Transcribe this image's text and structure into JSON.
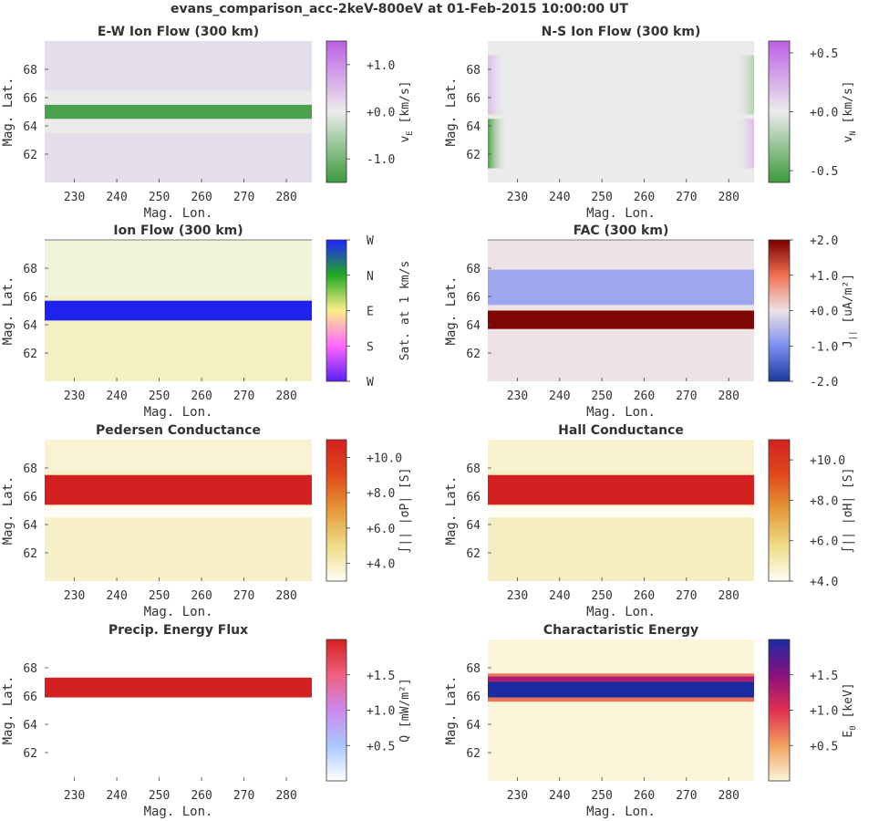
{
  "figure_title": "evans_comparison_acc-2keV-800eV at 01-Feb-2015 10:00:00 UT",
  "chart_data": [
    {
      "type": "heatmap",
      "title": "E-W Ion Flow (300 km)",
      "xlabel": "Mag. Lon.",
      "ylabel": "Mag. Lat.",
      "xlim": [
        223,
        286
      ],
      "ylim": [
        60,
        70
      ],
      "xticks": [
        "230",
        "240",
        "250",
        "260",
        "270",
        "280"
      ],
      "yticks": [
        "62",
        "64",
        "66",
        "68"
      ],
      "colorbar": {
        "label_main": "v",
        "label_sub": "E",
        "label_unit": " [km/s]",
        "ticks": [
          "+1.0",
          "+0.0",
          "-1.0"
        ],
        "range": [
          -1.5,
          1.5
        ],
        "colors": [
          "#3a9a3a",
          "#ebebeb",
          "#bd5fe6"
        ]
      },
      "bands": [
        {
          "from": 60,
          "to": 70,
          "value": 0.15
        },
        {
          "from": 63.5,
          "to": 64.5,
          "value": 0
        },
        {
          "from": 64.5,
          "to": 65.5,
          "value": -1.35
        },
        {
          "from": 65.5,
          "to": 66.5,
          "value": 0
        }
      ]
    },
    {
      "type": "heatmap",
      "title": "N-S Ion Flow (300 km)",
      "xlabel": "Mag. Lon.",
      "ylabel": "Mag. Lat.",
      "xlim": [
        223,
        286
      ],
      "ylim": [
        60,
        70
      ],
      "xticks": [
        "230",
        "240",
        "250",
        "260",
        "270",
        "280"
      ],
      "yticks": [
        "62",
        "64",
        "66",
        "68"
      ],
      "colorbar": {
        "label_main": "v",
        "label_sub": "N",
        "label_unit": " [km/s]",
        "ticks": [
          "+0.5",
          "+0.0",
          "-0.5"
        ],
        "range": [
          -0.6,
          0.6
        ],
        "colors": [
          "#3a9a3a",
          "#ebebeb",
          "#bd5fe6"
        ]
      },
      "bands": [
        {
          "from": 60,
          "to": 70,
          "value": 0
        }
      ],
      "edge_features": [
        {
          "lat": [
            61,
            64.5
          ],
          "left": -0.55,
          "right": 0.2
        },
        {
          "lat": [
            64.8,
            69
          ],
          "left": 0.2,
          "right": -0.2
        }
      ]
    },
    {
      "type": "heatmap",
      "title": "Ion Flow (300 km)",
      "xlabel": "Mag. Lon.",
      "ylabel": "Mag. Lat.",
      "xlim": [
        223,
        286
      ],
      "ylim": [
        60,
        70
      ],
      "xticks": [
        "230",
        "240",
        "250",
        "260",
        "270",
        "280"
      ],
      "yticks": [
        "62",
        "64",
        "66",
        "68"
      ],
      "colorbar": {
        "label_main": "Sat. at 1 km/s",
        "label_sub": "",
        "label_unit": "",
        "ticks": [
          "W",
          "N",
          "E",
          "S",
          "W"
        ],
        "colors": [
          "#5a1ef5",
          "#ff66ff",
          "#ffee88",
          "#22aa22",
          "#1e22ff"
        ]
      },
      "bands": [
        {
          "from": 60,
          "to": 64,
          "color": "#f3f1c4"
        },
        {
          "from": 64.3,
          "to": 65.7,
          "color": "#1e22ee"
        },
        {
          "from": 66,
          "to": 70,
          "color": "#f0f4d8"
        }
      ]
    },
    {
      "type": "heatmap",
      "title": "FAC (300 km)",
      "xlabel": "Mag. Lon.",
      "ylabel": "Mag. Lat.",
      "xlim": [
        223,
        286
      ],
      "ylim": [
        60,
        70
      ],
      "xticks": [
        "230",
        "240",
        "250",
        "260",
        "270",
        "280"
      ],
      "yticks": [
        "62",
        "64",
        "66",
        "68"
      ],
      "colorbar": {
        "label_main": "J",
        "label_sub": "||",
        "label_unit": " [uA/m²]",
        "ticks": [
          "+2.0",
          "+1.0",
          "+0.0",
          "-1.0",
          "-2.0"
        ],
        "range": [
          -2,
          2
        ],
        "colors": [
          "#1a3a9e",
          "#7a8ef0",
          "#ede2e6",
          "#f07050",
          "#7a0000"
        ]
      },
      "bands": [
        {
          "from": 60,
          "to": 63.7,
          "value": 0
        },
        {
          "from": 63.7,
          "to": 65,
          "value": 1.95
        },
        {
          "from": 65.4,
          "to": 67.9,
          "value": -0.7
        },
        {
          "from": 67.9,
          "to": 70,
          "value": 0
        }
      ]
    },
    {
      "type": "heatmap",
      "title": "Pedersen Conductance",
      "xlabel": "Mag. Lon.",
      "ylabel": "Mag. Lat.",
      "xlim": [
        223,
        286
      ],
      "ylim": [
        60,
        70
      ],
      "xticks": [
        "230",
        "240",
        "250",
        "260",
        "270",
        "280"
      ],
      "yticks": [
        "62",
        "64",
        "66",
        "68"
      ],
      "colorbar": {
        "label_main": "∫|| |σP| [S]",
        "label_sub": "",
        "label_unit": "",
        "ticks": [
          "+10.0",
          "+8.0",
          "+6.0",
          "+4.0"
        ],
        "range": [
          3,
          11
        ],
        "colors": [
          "#fdfdf4",
          "#eedc88",
          "#e59a3a",
          "#e04a1a",
          "#d42020"
        ]
      },
      "bands": [
        {
          "from": 60,
          "to": 63.8,
          "value": 3.8
        },
        {
          "from": 64.5,
          "to": 65.3,
          "value": 3
        },
        {
          "from": 65.4,
          "to": 67.5,
          "value": 11
        },
        {
          "from": 67.7,
          "to": 70,
          "value": 3.6
        }
      ]
    },
    {
      "type": "heatmap",
      "title": "Hall Conductance",
      "xlabel": "Mag. Lon.",
      "ylabel": "Mag. Lat.",
      "xlim": [
        223,
        286
      ],
      "ylim": [
        60,
        70
      ],
      "xticks": [
        "230",
        "240",
        "250",
        "260",
        "270",
        "280"
      ],
      "yticks": [
        "62",
        "64",
        "66",
        "68"
      ],
      "colorbar": {
        "label_main": "∫|| |σH| [S]",
        "label_sub": "",
        "label_unit": "",
        "ticks": [
          "+10.0",
          "+8.0",
          "+6.0",
          "+4.0"
        ],
        "range": [
          4,
          11
        ],
        "colors": [
          "#fdfdf4",
          "#eedc88",
          "#e59a3a",
          "#e04a1a",
          "#d42020"
        ]
      },
      "bands": [
        {
          "from": 60,
          "to": 63.8,
          "value": 4.8
        },
        {
          "from": 64.5,
          "to": 65.3,
          "value": 4
        },
        {
          "from": 65.4,
          "to": 67.5,
          "value": 11
        },
        {
          "from": 67.7,
          "to": 70,
          "value": 4.6
        }
      ]
    },
    {
      "type": "heatmap",
      "title": "Precip. Energy Flux",
      "xlabel": "Mag. Lon.",
      "ylabel": "Mag. Lat.",
      "xlim": [
        223,
        286
      ],
      "ylim": [
        60,
        70
      ],
      "xticks": [
        "230",
        "240",
        "250",
        "260",
        "270",
        "280"
      ],
      "yticks": [
        "62",
        "64",
        "66",
        "68"
      ],
      "colorbar": {
        "label_main": "Q",
        "label_sub": "",
        "label_unit": " [mW/m²]",
        "ticks": [
          "+1.5",
          "+1.0",
          "+0.5"
        ],
        "range": [
          0,
          2
        ],
        "colors": [
          "#ffffff",
          "#a9c8ff",
          "#cc88ee",
          "#f06080",
          "#d42020"
        ]
      },
      "bands": [
        {
          "from": 60,
          "to": 65.6,
          "value": 0
        },
        {
          "from": 65.9,
          "to": 67.3,
          "value": 2
        },
        {
          "from": 67.6,
          "to": 70,
          "value": 0
        }
      ]
    },
    {
      "type": "heatmap",
      "title": "Charactaristic Energy",
      "xlabel": "Mag. Lon.",
      "ylabel": "Mag. Lat.",
      "xlim": [
        223,
        286
      ],
      "ylim": [
        60,
        70
      ],
      "xticks": [
        "230",
        "240",
        "250",
        "260",
        "270",
        "280"
      ],
      "yticks": [
        "62",
        "64",
        "66",
        "68"
      ],
      "colorbar": {
        "label_main": "E",
        "label_sub": "0",
        "label_unit": " [keV]",
        "ticks": [
          "+1.5",
          "+1.0",
          "+0.5"
        ],
        "range": [
          0,
          2
        ],
        "colors": [
          "#fbf6da",
          "#f2a060",
          "#e03050",
          "#8a1080",
          "#1a2aa0"
        ]
      },
      "bands": [
        {
          "from": 60,
          "to": 65.5,
          "value": 0
        },
        {
          "from": 65.6,
          "to": 65.9,
          "value": 0.7
        },
        {
          "from": 65.9,
          "to": 67.0,
          "value": 2
        },
        {
          "from": 67.0,
          "to": 67.4,
          "value": 1.3
        },
        {
          "from": 67.4,
          "to": 67.6,
          "value": 0.7
        },
        {
          "from": 67.6,
          "to": 70,
          "value": 0
        }
      ]
    }
  ]
}
